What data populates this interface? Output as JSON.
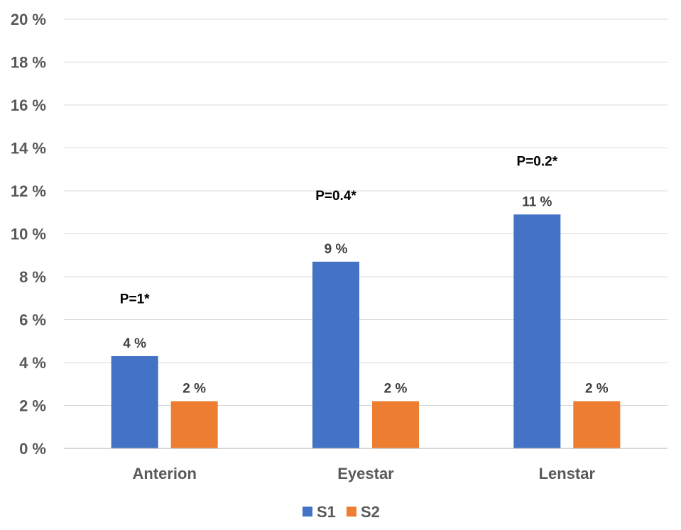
{
  "chart_data": {
    "type": "bar",
    "categories": [
      "Anterion",
      "Eyestar",
      "Lenstar"
    ],
    "series": [
      {
        "name": "S1",
        "color": "#4472C4",
        "values": [
          4.3,
          8.7,
          10.9
        ],
        "labels": [
          "4 %",
          "9 %",
          "11 %"
        ]
      },
      {
        "name": "S2",
        "color": "#ED7D31",
        "values": [
          2.2,
          2.2,
          2.2
        ],
        "labels": [
          "2 %",
          "2 %",
          "2 %"
        ]
      }
    ],
    "annotations": [
      "P=1*",
      "P=0.4*",
      "P=0.2*"
    ],
    "annotation_values": [
      7.0,
      11.8,
      13.4
    ],
    "ylim": [
      0,
      20
    ],
    "y_ticks": [
      0,
      2,
      4,
      6,
      8,
      10,
      12,
      14,
      16,
      18,
      20
    ],
    "y_tick_labels": [
      "0 %",
      "2 %",
      "4 %",
      "6 %",
      "8 %",
      "10 %",
      "12 %",
      "14 %",
      "16 %",
      "18 %",
      "20 %"
    ],
    "grid": true,
    "legend_position": "bottom"
  }
}
